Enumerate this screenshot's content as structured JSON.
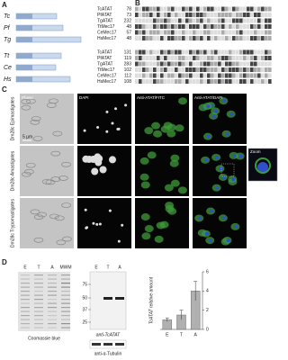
{
  "panel_a": {
    "label": "A",
    "species": [
      "Tc",
      "Pf",
      "Tg",
      "Tt",
      "Ce",
      "Hs"
    ]
  },
  "panel_b": {
    "label": "B",
    "block1": {
      "names": [
        "TcATAT",
        "PfATAT",
        "TgATAT",
        "TtMec17",
        "CeMec17",
        "HsMec17"
      ],
      "starts": [
        78,
        73,
        232,
        48,
        57,
        48
      ]
    },
    "block2": {
      "names": [
        "TcATAT",
        "PfATAT",
        "TgATAT",
        "TtMec17",
        "CeMec17",
        "HsMec17"
      ],
      "starts": [
        131,
        119,
        283,
        102,
        112,
        108
      ]
    }
  },
  "panel_c": {
    "label": "C",
    "columns": [
      "Phase",
      "DAPI",
      "Anti-ATAT/FITC",
      "Anti-ATAT/DAPI"
    ],
    "rows": [
      "Dm28c Epimastigotes",
      "Dm28c Amastigotes",
      "Dm28c Trypomastigotes"
    ],
    "zoom": "Zoom",
    "scale_bar": "5 µm"
  },
  "panel_d": {
    "label": "D",
    "gel": {
      "lanes": [
        "E",
        "T",
        "A",
        "MWM"
      ],
      "caption": "Coomassie blue"
    },
    "blot": {
      "lanes": [
        "E",
        "T",
        "A"
      ],
      "markers": [
        75,
        50,
        37,
        25
      ],
      "caption": "anti-TcATAT",
      "loading": "anti-α-Tubulin"
    },
    "chart": {
      "type": "bar",
      "categories": [
        "E",
        "T",
        "A"
      ],
      "values": [
        1,
        1.5,
        4
      ],
      "errors": [
        0.2,
        0.5,
        1.0
      ],
      "ylim": [
        0,
        6
      ],
      "yticks": [
        0,
        2,
        4,
        6
      ],
      "ylabel": "TcATAT relative amount",
      "color": "#b0b0b0"
    }
  }
}
